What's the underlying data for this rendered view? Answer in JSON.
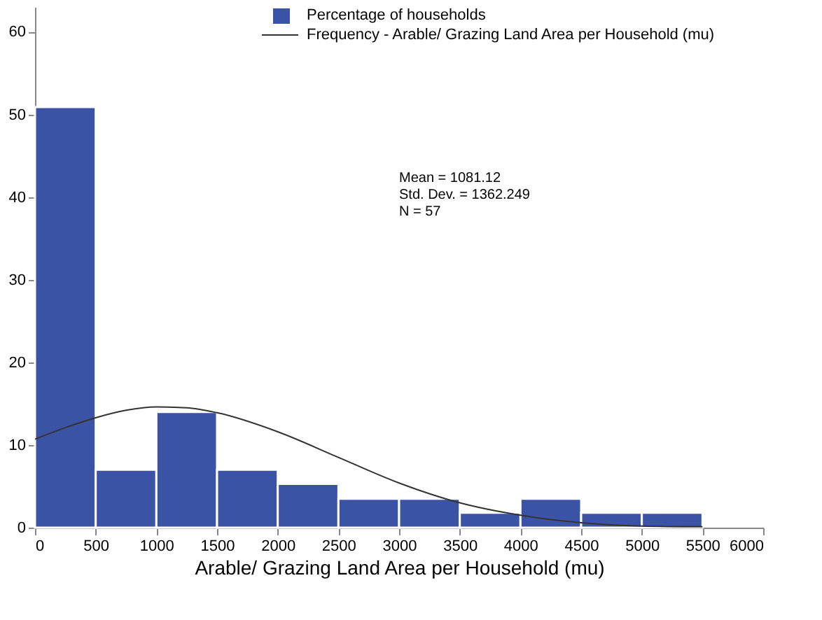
{
  "chart_data": {
    "type": "histogram",
    "xlabel": "Arable/ Grazing Land Area per Household (mu)",
    "bins": [
      0,
      500,
      1000,
      1500,
      2000,
      2500,
      3000,
      3500,
      4000,
      4500,
      5000,
      5500
    ],
    "series": [
      {
        "name": "Percentage of households",
        "color": "#3a53a4",
        "values": [
          50.9,
          7.0,
          14.0,
          7.0,
          5.3,
          3.5,
          3.5,
          1.8,
          3.5,
          1.8,
          1.8
        ]
      },
      {
        "type": "line",
        "name": "Frequency - Arable/ Grazing Land Area per Household (mu)",
        "color": "#333333",
        "x": [
          0,
          250,
          500,
          750,
          1000,
          1250,
          1500,
          2000,
          2500,
          3000,
          3500,
          4000,
          4500,
          5000,
          5500
        ],
        "values": [
          10.7,
          12.1,
          13.3,
          14.2,
          14.6,
          14.5,
          13.9,
          11.6,
          8.5,
          5.4,
          3.0,
          1.5,
          0.6,
          0.2,
          0.1
        ]
      }
    ],
    "annotations": [
      "Mean = 1081.12",
      "Std. Dev. = 1362.249",
      "N = 57"
    ],
    "xlim": [
      0,
      6000
    ],
    "xticks": [
      0,
      500,
      1000,
      1500,
      2000,
      2500,
      3000,
      3500,
      4000,
      4500,
      5000,
      5500,
      6000
    ],
    "ylim": [
      0,
      63
    ],
    "yticks": [
      0,
      10,
      20,
      30,
      40,
      50,
      60
    ],
    "grid": false,
    "legend": "top right"
  }
}
